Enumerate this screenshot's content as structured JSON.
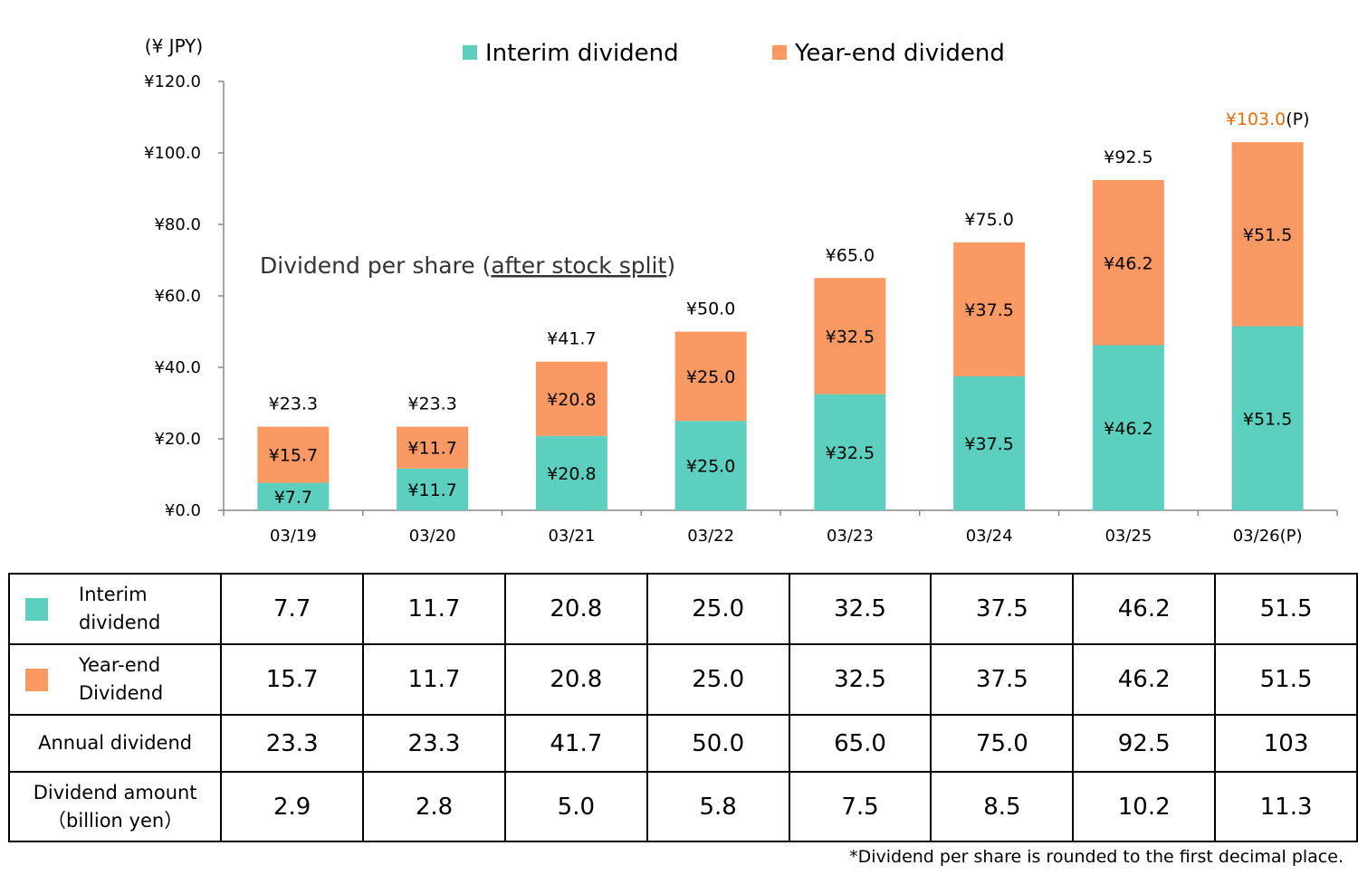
{
  "chart_data": {
    "type": "bar",
    "stacked": true,
    "unit_label": "(¥ JPY)",
    "annotation": "Dividend per share (after stock split)",
    "annotation_prefix": "Dividend per share (",
    "annotation_underlined": "after stock split",
    "annotation_suffix": ")",
    "categories": [
      "03/19",
      "03/20",
      "03/21",
      "03/22",
      "03/23",
      "03/24",
      "03/25",
      "03/26(P)"
    ],
    "series": [
      {
        "name": "Interim dividend",
        "color": "#5ccfbf",
        "values": [
          7.7,
          11.7,
          20.8,
          25.0,
          32.5,
          37.5,
          46.2,
          51.5
        ],
        "labels": [
          "¥7.7",
          "¥11.7",
          "¥20.8",
          "¥25.0",
          "¥32.5",
          "¥37.5",
          "¥46.2",
          "¥51.5"
        ]
      },
      {
        "name": "Year-end dividend",
        "color": "#fb9965",
        "values": [
          15.7,
          11.7,
          20.8,
          25.0,
          32.5,
          37.5,
          46.2,
          51.5
        ],
        "labels": [
          "¥15.7",
          "¥11.7",
          "¥20.8",
          "¥25.0",
          "¥32.5",
          "¥37.5",
          "¥46.2",
          "¥51.5"
        ]
      }
    ],
    "totals": [
      23.3,
      23.3,
      41.7,
      50.0,
      65.0,
      75.0,
      92.5,
      103.0
    ],
    "total_labels": [
      "¥23.3",
      "¥23.3",
      "¥41.7",
      "¥50.0",
      "¥65.0",
      "¥75.0",
      "¥92.5",
      "¥103.0"
    ],
    "last_total_suffix": "(P)",
    "highlight_color": "#e46c0a",
    "ylim": [
      0,
      120
    ],
    "yticks": [
      0,
      20,
      40,
      60,
      80,
      100,
      120
    ],
    "ytick_labels": [
      "¥0.0",
      "¥20.0",
      "¥40.0",
      "¥60.0",
      "¥80.0",
      "¥100.0",
      "¥120.0"
    ],
    "legend_position": "top-center",
    "grid": false
  },
  "table": {
    "rows": [
      {
        "label_lines": [
          "Interim",
          "dividend"
        ],
        "swatch": "#5ccfbf",
        "values": [
          "7.7",
          "11.7",
          "20.8",
          "25.0",
          "32.5",
          "37.5",
          "46.2",
          "51.5"
        ]
      },
      {
        "label_lines": [
          "Year-end",
          "Dividend"
        ],
        "swatch": "#fb9965",
        "values": [
          "15.7",
          "11.7",
          "20.8",
          "25.0",
          "32.5",
          "37.5",
          "46.2",
          "51.5"
        ]
      },
      {
        "label_lines": [
          "Annual dividend"
        ],
        "values": [
          "23.3",
          "23.3",
          "41.7",
          "50.0",
          "65.0",
          "75.0",
          "92.5",
          "103"
        ]
      },
      {
        "label_lines": [
          "Dividend amount",
          "（billion yen）"
        ],
        "values": [
          "2.9",
          "2.8",
          "5.0",
          "5.8",
          "7.5",
          "8.5",
          "10.2",
          "11.3"
        ]
      }
    ]
  },
  "footnote": "*Dividend per share is rounded to the first decimal place."
}
